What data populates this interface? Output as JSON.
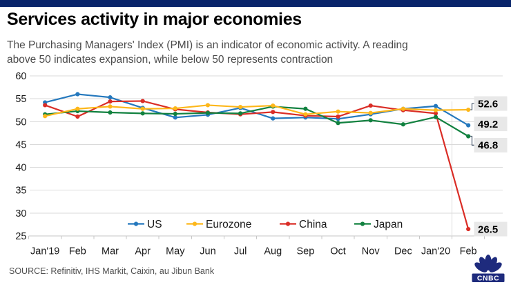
{
  "topbar": {
    "color": "#09256b"
  },
  "header": {
    "title": "Services activity in major economies",
    "subtitle_lines": [
      "The Purchasing Managers' Index (PMI) is an indicator of economic activity. A reading",
      "above 50 indicates expansion, while below 50 represents contraction"
    ]
  },
  "chart_data": {
    "type": "line",
    "title": "Services activity in major economies",
    "categories": [
      "Jan'19",
      "Feb",
      "Mar",
      "Apr",
      "May",
      "Jun",
      "Jul",
      "Aug",
      "Sep",
      "Oct",
      "Nov",
      "Dec",
      "Jan'20",
      "Feb"
    ],
    "series": [
      {
        "name": "US",
        "color": "#2478bd",
        "values": [
          54.2,
          56.0,
          55.3,
          53.0,
          50.9,
          51.5,
          53.0,
          50.7,
          50.9,
          50.6,
          51.6,
          52.8,
          53.4,
          49.2
        ],
        "end_label": "49.2"
      },
      {
        "name": "Eurozone",
        "color": "#fdb71a",
        "values": [
          51.2,
          52.8,
          53.3,
          52.8,
          52.9,
          53.6,
          53.2,
          53.5,
          51.6,
          52.2,
          51.9,
          52.8,
          52.5,
          52.6
        ],
        "end_label": "52.6"
      },
      {
        "name": "China",
        "color": "#da2d26",
        "values": [
          53.6,
          51.1,
          54.4,
          54.5,
          52.7,
          52.0,
          51.6,
          52.1,
          51.3,
          51.1,
          53.5,
          52.5,
          51.8,
          26.5
        ],
        "end_label": "26.5"
      },
      {
        "name": "Japan",
        "color": "#11813f",
        "values": [
          51.6,
          52.3,
          52.0,
          51.8,
          51.7,
          51.9,
          51.8,
          53.3,
          52.8,
          49.7,
          50.3,
          49.4,
          51.0,
          46.8
        ],
        "end_label": "46.8"
      }
    ],
    "ylim": [
      25,
      60
    ],
    "ytick_interval": 5,
    "yticks": [
      60,
      55,
      50,
      45,
      40,
      35,
      30,
      25
    ],
    "grid": true,
    "legend_position": "bottom-inside",
    "end_label_bg": "#e8e8e8",
    "gridline_color": "#dadada",
    "axis_color": "#c6c6c6",
    "axis_text_color": "#1a1a1a"
  },
  "footer": {
    "source": "SOURCE: Refinitiv, IHS Markit, Caixin, au Jibun Bank",
    "logo_text": "CNBC",
    "logo_color": "#1e2b7d"
  }
}
